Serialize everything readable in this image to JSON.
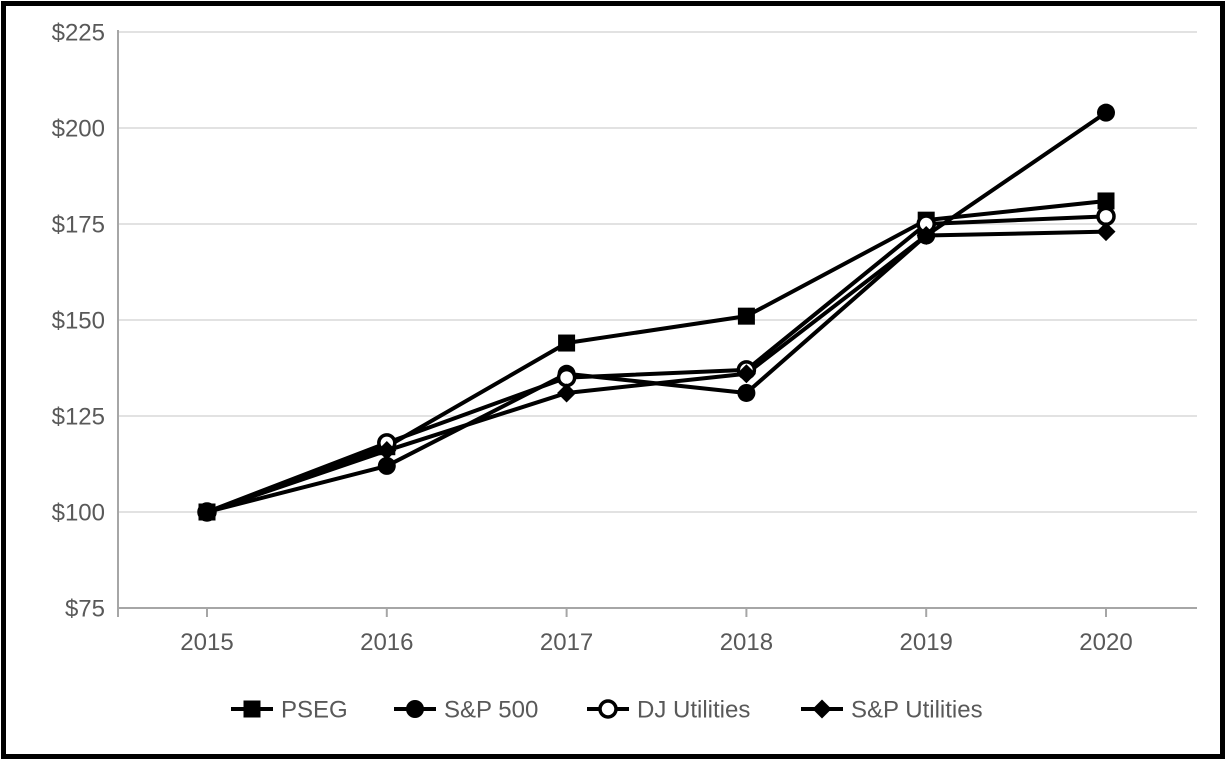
{
  "chart_data": {
    "type": "line",
    "title": "",
    "x_categories": [
      "2015",
      "2016",
      "2017",
      "2018",
      "2019",
      "2020"
    ],
    "series": [
      {
        "name": "PSEG",
        "marker": "filled-square",
        "color": "#000000",
        "values": [
          100,
          117,
          144,
          151,
          176,
          181
        ]
      },
      {
        "name": "S&P 500",
        "marker": "filled-circle",
        "color": "#000000",
        "values": [
          100,
          112,
          136,
          131,
          172,
          204
        ]
      },
      {
        "name": "DJ Utilities",
        "marker": "open-circle",
        "color": "#000000",
        "values": [
          100,
          118,
          135,
          137,
          175,
          177
        ]
      },
      {
        "name": "S&P Utilities",
        "marker": "filled-diamond",
        "color": "#000000",
        "values": [
          100,
          116,
          131,
          136,
          172,
          173
        ]
      }
    ],
    "y_axis": {
      "min": 75,
      "max": 225,
      "tick_step": 25,
      "tick_labels": [
        "$75",
        "$100",
        "$125",
        "$150",
        "$175",
        "$200",
        "$225"
      ]
    },
    "grid": true,
    "legend_position": "bottom",
    "styles": {
      "grid_color": "#d9d9d9",
      "axis_color": "#a6a6a6",
      "label_color": "#595959",
      "line_color": "#000000",
      "frame_color": "#000000",
      "background": "#ffffff"
    }
  }
}
